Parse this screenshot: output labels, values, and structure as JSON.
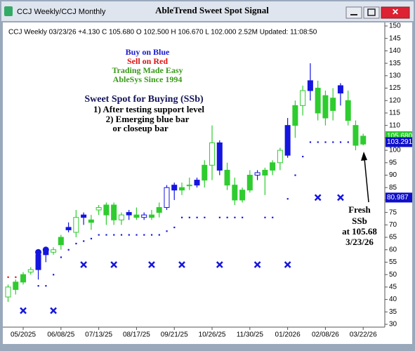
{
  "window": {
    "left_title": "CCJ  Weekly/CCJ  Monthly",
    "title": "AbleTrend Sweet Spot Signal"
  },
  "chart_data": {
    "type": "candlestick",
    "header": "CCJ  Weekly  03/23/26 +4.130 C 105.680 O 102.500 H 106.670 L 102.000 2.52M Updated: 11:08:50",
    "categories": [
      null,
      null,
      "05/2025",
      null,
      null,
      null,
      null,
      "06/08/25",
      null,
      null,
      null,
      null,
      "07/13/25",
      null,
      null,
      null,
      null,
      "08/17/25",
      null,
      null,
      null,
      null,
      "09/21/25",
      null,
      null,
      null,
      null,
      "10/26/25",
      null,
      null,
      null,
      null,
      "11/30/25",
      null,
      null,
      null,
      null,
      "01/2026",
      null,
      null,
      null,
      null,
      "02/08/26",
      null,
      null,
      null,
      null,
      "03/22/26"
    ],
    "open": [
      41,
      44,
      47,
      51,
      52,
      58,
      59,
      62,
      68,
      67,
      73,
      71,
      76,
      74,
      78,
      72,
      74,
      74,
      73,
      73,
      75,
      77,
      84,
      85,
      86,
      86,
      88,
      94,
      103,
      92,
      86,
      80,
      84,
      90,
      90,
      92,
      95,
      98,
      110,
      118,
      124,
      125,
      122,
      116,
      123,
      120,
      110,
      102.5
    ],
    "high": [
      46,
      48,
      51,
      53,
      60,
      61,
      61,
      66,
      71,
      76,
      75,
      74,
      78,
      79,
      79,
      75,
      76,
      77,
      75,
      76,
      79,
      86,
      87,
      87,
      89,
      89,
      96,
      110,
      104,
      95,
      89,
      85,
      92,
      92,
      93,
      96,
      101,
      113,
      120,
      126,
      135,
      128,
      124,
      125,
      127,
      124,
      112,
      106.67
    ],
    "low": [
      39,
      42,
      46,
      50,
      48,
      55,
      58,
      60,
      67,
      65,
      70,
      68,
      74,
      70,
      70,
      70,
      72,
      72,
      72,
      72,
      73,
      76,
      80,
      82,
      84,
      85,
      85,
      88,
      90,
      84,
      78,
      79,
      83,
      88,
      82,
      90,
      92,
      97,
      105,
      114,
      120,
      112,
      110,
      112,
      118,
      110,
      100,
      102
    ],
    "close": [
      45,
      47,
      50,
      52,
      58,
      60,
      60,
      65,
      69,
      73,
      74,
      72,
      77,
      78,
      72,
      74,
      75,
      73,
      74,
      74,
      77,
      85,
      86,
      84,
      86,
      88,
      94,
      103,
      92,
      86,
      80,
      84,
      90,
      91,
      92,
      95,
      100,
      110,
      118,
      124,
      128,
      115,
      113,
      121,
      126,
      112,
      102,
      105.68
    ],
    "colors": [
      "#2ecc2e",
      "#2ecc2e",
      "#2ecc2e",
      "#2ecc2e",
      "#1515e0",
      "#1515e0",
      "#2ecc2e",
      "#2ecc2e",
      "#1515e0",
      "#2ecc2e",
      "#1515e0",
      "#2ecc2e",
      "#2ecc2e",
      "#2ecc2e",
      "#2ecc2e",
      "#2ecc2e",
      "#1515e0",
      "#2ecc2e",
      "#1515e0",
      "#2ecc2e",
      "#2ecc2e",
      "#1515e0",
      "#1515e0",
      "#2ecc2e",
      "#2ecc2e",
      "#1515e0",
      "#2ecc2e",
      "#2ecc2e",
      "#1515e0",
      "#2ecc2e",
      "#2ecc2e",
      "#2ecc2e",
      "#2ecc2e",
      "#1515e0",
      "#2ecc2e",
      "#2ecc2e",
      "#2ecc2e",
      "#1515e0",
      "#2ecc2e",
      "#2ecc2e",
      "#1515e0",
      "#2ecc2e",
      "#2ecc2e",
      "#2ecc2e",
      "#1515e0",
      "#2ecc2e",
      "#2ecc2e",
      "#2ecc2e"
    ],
    "sell_stops": [
      49,
      49,
      null,
      null,
      null,
      null,
      null,
      null,
      null,
      null,
      null,
      null,
      null,
      null,
      null,
      null,
      null,
      null,
      null,
      null,
      null,
      null,
      null,
      null,
      null,
      null,
      null,
      null,
      null,
      null,
      null,
      null,
      null,
      null,
      null,
      null,
      null,
      null,
      null,
      null,
      null,
      null,
      null,
      null,
      null,
      null,
      null,
      null
    ],
    "sell_stop_color": "#e01010",
    "buy_stops": [
      null,
      null,
      null,
      null,
      45.5,
      45.5,
      50,
      57,
      60,
      62.5,
      63.5,
      64.5,
      66,
      66,
      66,
      66,
      66,
      66,
      66,
      66,
      66,
      67.5,
      69,
      73,
      73,
      73,
      73,
      null,
      73,
      73,
      73,
      73,
      null,
      null,
      73,
      73,
      null,
      80.5,
      90,
      97.5,
      103.3,
      103.3,
      103.3,
      103.3,
      103.3,
      103.3,
      103.3,
      103.3
    ],
    "buy_stop_color": "#1515e0",
    "x_marks": [
      null,
      null,
      35.5,
      null,
      null,
      null,
      35.5,
      null,
      null,
      null,
      54,
      null,
      null,
      null,
      54,
      null,
      null,
      null,
      null,
      54,
      null,
      null,
      null,
      54,
      null,
      null,
      null,
      null,
      54,
      null,
      null,
      null,
      null,
      54,
      null,
      null,
      null,
      54,
      null,
      null,
      null,
      81,
      null,
      null,
      81,
      null,
      null,
      null
    ],
    "circle_marks": [
      null,
      null,
      null,
      null,
      59,
      60,
      null,
      null,
      null,
      null,
      null,
      null,
      null,
      null,
      null,
      null,
      null,
      null,
      null,
      null,
      null,
      null,
      null,
      null,
      null,
      null,
      null,
      null,
      null,
      null,
      null,
      null,
      null,
      null,
      null,
      null,
      null,
      null,
      null,
      null,
      null,
      null,
      null,
      null,
      null,
      null,
      null,
      null
    ],
    "mark_color": "#1515e0",
    "ylim": [
      30,
      150
    ],
    "yticks": [
      30,
      35,
      40,
      45,
      50,
      55,
      60,
      65,
      70,
      75,
      80,
      85,
      90,
      95,
      100,
      105,
      110,
      115,
      120,
      125,
      130,
      135,
      140,
      145,
      150
    ],
    "price_tags": [
      {
        "value": 105.68,
        "label": "105.680",
        "color": "#2ecc2e"
      },
      {
        "value": 103.291,
        "label": "103.291",
        "color": "#1010c8"
      },
      {
        "value": 80.987,
        "label": "80.987",
        "color": "#1010c8"
      }
    ],
    "annotations": [
      {
        "text": "Buy on Blue",
        "color": "#1a1acc"
      },
      {
        "text": "Sell on Red",
        "color": "#e01010"
      },
      {
        "text": "Trading Made Easy",
        "color": "#3a9a1a"
      },
      {
        "text": "AbleSys Since 1994",
        "color": "#3a9a1a"
      },
      {
        "text": "Sweet Spot for Buying (SSb)",
        "color": "#14145a"
      },
      {
        "text": "1) After testing support level",
        "color": "#000000"
      },
      {
        "text": "2) Emerging blue bar",
        "color": "#000000"
      },
      {
        "text": "or closeup bar",
        "color": "#000000"
      },
      {
        "text": "Fresh",
        "color": "#000000"
      },
      {
        "text": "SSb",
        "color": "#000000"
      },
      {
        "text": "at 105.68",
        "color": "#000000"
      },
      {
        "text": "3/23/26",
        "color": "#000000"
      }
    ]
  }
}
